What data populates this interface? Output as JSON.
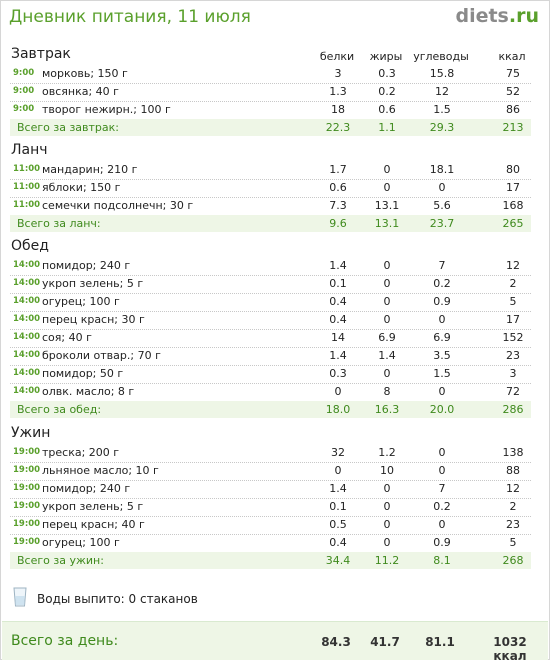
{
  "header": {
    "title": "Дневник питания, 11 июля",
    "logo_part1": "diets",
    "logo_part2": ".ru"
  },
  "columns": {
    "proteins": "белки",
    "fats": "жиры",
    "carbs": "углеводы",
    "kcal": "ккал"
  },
  "meals": [
    {
      "title": "Завтрак",
      "items": [
        {
          "time": "9:00",
          "name": "морковь; 150 г",
          "p": "3",
          "f": "0.3",
          "c": "15.8",
          "k": "75"
        },
        {
          "time": "9:00",
          "name": "овсянка; 40 г",
          "p": "1.3",
          "f": "0.2",
          "c": "12",
          "k": "52"
        },
        {
          "time": "9:00",
          "name": "творог нежирн.; 100 г",
          "p": "18",
          "f": "0.6",
          "c": "1.5",
          "k": "86"
        }
      ],
      "total": {
        "label": "Всего за завтрак:",
        "p": "22.3",
        "f": "1.1",
        "c": "29.3",
        "k": "213"
      }
    },
    {
      "title": "Ланч",
      "items": [
        {
          "time": "11:00",
          "name": "мандарин; 210 г",
          "p": "1.7",
          "f": "0",
          "c": "18.1",
          "k": "80"
        },
        {
          "time": "11:00",
          "name": "яблоки; 150 г",
          "p": "0.6",
          "f": "0",
          "c": "0",
          "k": "17"
        },
        {
          "time": "11:00",
          "name": "семечки подсолнечн; 30 г",
          "p": "7.3",
          "f": "13.1",
          "c": "5.6",
          "k": "168"
        }
      ],
      "total": {
        "label": "Всего за ланч:",
        "p": "9.6",
        "f": "13.1",
        "c": "23.7",
        "k": "265"
      }
    },
    {
      "title": "Обед",
      "items": [
        {
          "time": "14:00",
          "name": "помидор; 240 г",
          "p": "1.4",
          "f": "0",
          "c": "7",
          "k": "12"
        },
        {
          "time": "14:00",
          "name": "укроп зелень; 5 г",
          "p": "0.1",
          "f": "0",
          "c": "0.2",
          "k": "2"
        },
        {
          "time": "14:00",
          "name": "огурец; 100 г",
          "p": "0.4",
          "f": "0",
          "c": "0.9",
          "k": "5"
        },
        {
          "time": "14:00",
          "name": "перец красн; 30 г",
          "p": "0.4",
          "f": "0",
          "c": "0",
          "k": "17"
        },
        {
          "time": "14:00",
          "name": "соя; 40 г",
          "p": "14",
          "f": "6.9",
          "c": "6.9",
          "k": "152"
        },
        {
          "time": "14:00",
          "name": "броколи отвар.; 70 г",
          "p": "1.4",
          "f": "1.4",
          "c": "3.5",
          "k": "23"
        },
        {
          "time": "14:00",
          "name": "помидор; 50 г",
          "p": "0.3",
          "f": "0",
          "c": "1.5",
          "k": "3"
        },
        {
          "time": "14:00",
          "name": "олвк. масло; 8 г",
          "p": "0",
          "f": "8",
          "c": "0",
          "k": "72"
        }
      ],
      "total": {
        "label": "Всего за обед:",
        "p": "18.0",
        "f": "16.3",
        "c": "20.0",
        "k": "286"
      }
    },
    {
      "title": "Ужин",
      "items": [
        {
          "time": "19:00",
          "name": "треска; 200 г",
          "p": "32",
          "f": "1.2",
          "c": "0",
          "k": "138"
        },
        {
          "time": "19:00",
          "name": "льняное масло; 10 г",
          "p": "0",
          "f": "10",
          "c": "0",
          "k": "88"
        },
        {
          "time": "19:00",
          "name": "помидор; 240 г",
          "p": "1.4",
          "f": "0",
          "c": "7",
          "k": "12"
        },
        {
          "time": "19:00",
          "name": "укроп зелень; 5 г",
          "p": "0.1",
          "f": "0",
          "c": "0.2",
          "k": "2"
        },
        {
          "time": "19:00",
          "name": "перец красн; 40 г",
          "p": "0.5",
          "f": "0",
          "c": "0",
          "k": "23"
        },
        {
          "time": "19:00",
          "name": "огурец; 100 г",
          "p": "0.4",
          "f": "0",
          "c": "0.9",
          "k": "5"
        }
      ],
      "total": {
        "label": "Всего за ужин:",
        "p": "34.4",
        "f": "11.2",
        "c": "8.1",
        "k": "268"
      }
    }
  ],
  "water": {
    "label": "Воды выпито: 0 стаканов",
    "icon": "glass-icon"
  },
  "day_total": {
    "label": "Всего за день:",
    "p": "84.3",
    "f": "41.7",
    "c": "81.1",
    "k": "1032 ккал"
  },
  "colors": {
    "accent": "#5aa02c",
    "total_bg": "#eef6e6",
    "total_text": "#3f8a1d"
  }
}
